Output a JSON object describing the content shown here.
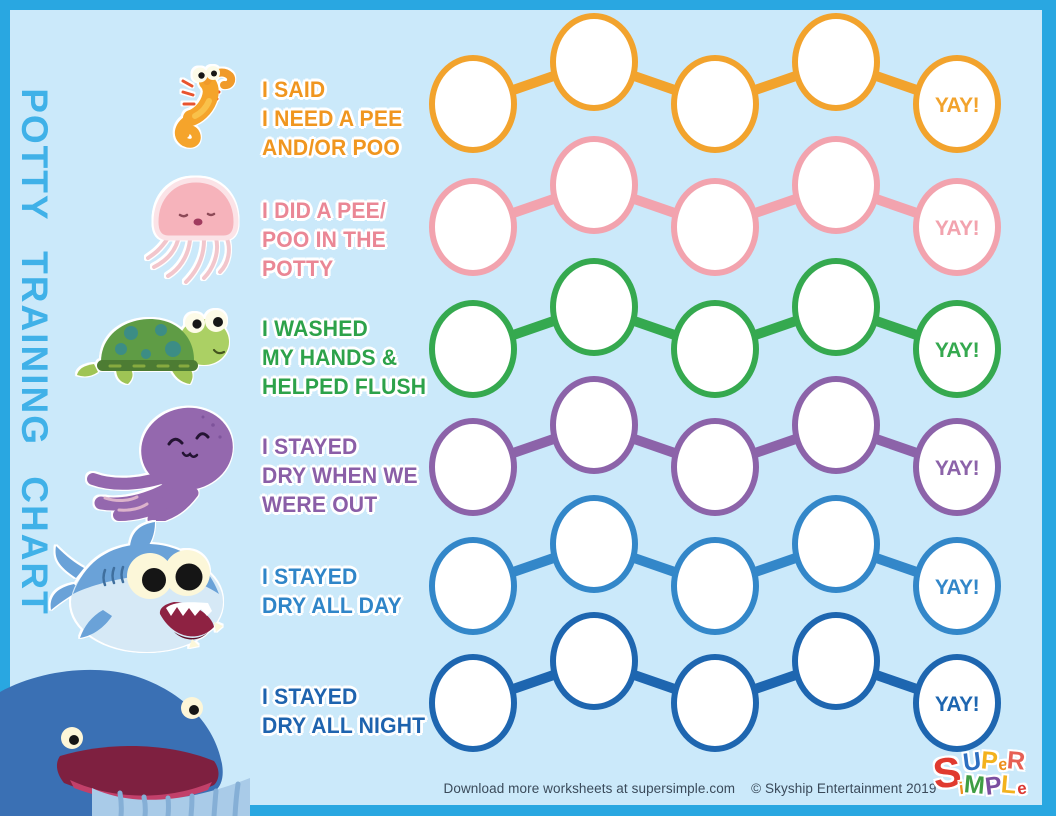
{
  "page": {
    "vertical_title": "POTTY TRAINING CHART",
    "title_color": "#40b1e8",
    "background": "#cbe9fa",
    "frame_color": "#29a7e1"
  },
  "rows": [
    {
      "animal": "seahorse",
      "lines": [
        "I SAID",
        "I NEED A PEE",
        "AND/OR POO"
      ],
      "yay_label": "YAY!",
      "circle_color": "#f2a32d",
      "text_color": "#f0961f",
      "circle_count": 5
    },
    {
      "animal": "jellyfish",
      "lines": [
        "I DID A PEE/",
        "POO IN THE",
        "POTTY"
      ],
      "yay_label": "YAY!",
      "circle_color": "#f2a3ae",
      "text_color": "#ea8795",
      "circle_count": 5
    },
    {
      "animal": "turtle",
      "lines": [
        "I WASHED",
        "MY HANDS &",
        "HELPED FLUSH"
      ],
      "yay_label": "YAY!",
      "circle_color": "#35a94f",
      "text_color": "#2da24a",
      "circle_count": 5
    },
    {
      "animal": "octopus",
      "lines": [
        "I STAYED",
        "DRY WHEN WE",
        "WERE OUT"
      ],
      "yay_label": "YAY!",
      "circle_color": "#8c63a9",
      "text_color": "#8a5ea7",
      "circle_count": 5
    },
    {
      "animal": "shark",
      "lines": [
        "I STAYED",
        "DRY ALL DAY"
      ],
      "yay_label": "YAY!",
      "circle_color": "#3387c9",
      "text_color": "#2f85c8",
      "circle_count": 5
    },
    {
      "animal": "whale",
      "lines": [
        "I STAYED",
        "DRY ALL NIGHT"
      ],
      "yay_label": "YAY!",
      "circle_color": "#1e66b0",
      "text_color": "#1e63ae",
      "circle_count": 5
    }
  ],
  "footer": {
    "download_text": "Download more worksheets at supersimple.com",
    "copyright_text": "© Skyship Entertainment 2019",
    "color": "#3a4a5a"
  },
  "logo": {
    "big_s": {
      "ch": "S",
      "color": "#e03a2f"
    },
    "line1": [
      {
        "ch": "U",
        "color": "#2d6fc0"
      },
      {
        "ch": "P",
        "color": "#f3b21d"
      },
      {
        "ch": "e",
        "color": "#ee8f1d",
        "small": true
      },
      {
        "ch": "R",
        "color": "#e66055"
      }
    ],
    "line2": [
      {
        "ch": "i",
        "color": "#ee8f1d",
        "small": true
      },
      {
        "ch": "M",
        "color": "#3f9e44"
      },
      {
        "ch": "P",
        "color": "#7b4fa0"
      },
      {
        "ch": "L",
        "color": "#f3b21d"
      },
      {
        "ch": "e",
        "color": "#dc3832",
        "small": true
      }
    ]
  }
}
